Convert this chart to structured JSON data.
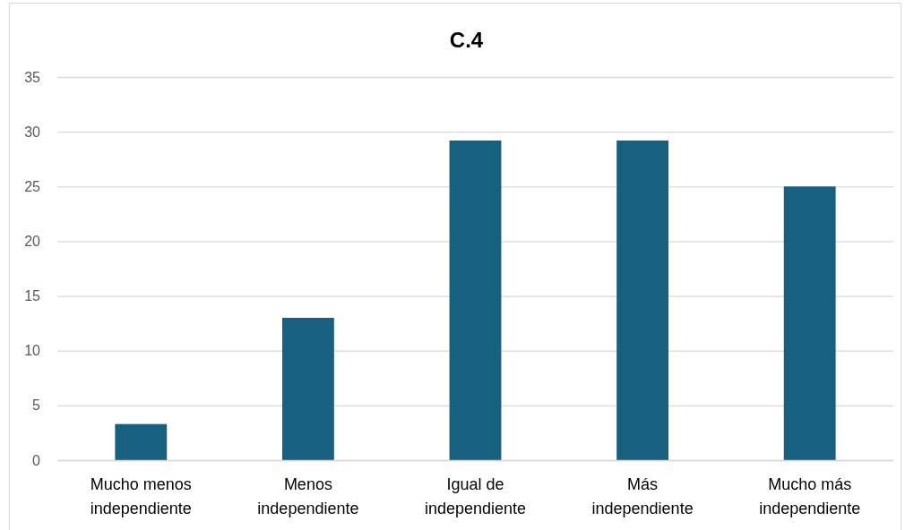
{
  "chart_data": {
    "type": "bar",
    "title": "C.4",
    "categories": [
      "Mucho menos independiente",
      "Menos independiente",
      "Igual de independiente",
      "Más independiente",
      "Mucho más independiente"
    ],
    "values": [
      3.3,
      13.0,
      29.2,
      29.2,
      25.0
    ],
    "color": "#17607f",
    "ylim": [
      0,
      35
    ],
    "yticks": [
      0,
      5,
      10,
      15,
      20,
      25,
      30,
      35
    ],
    "grid": "y"
  }
}
